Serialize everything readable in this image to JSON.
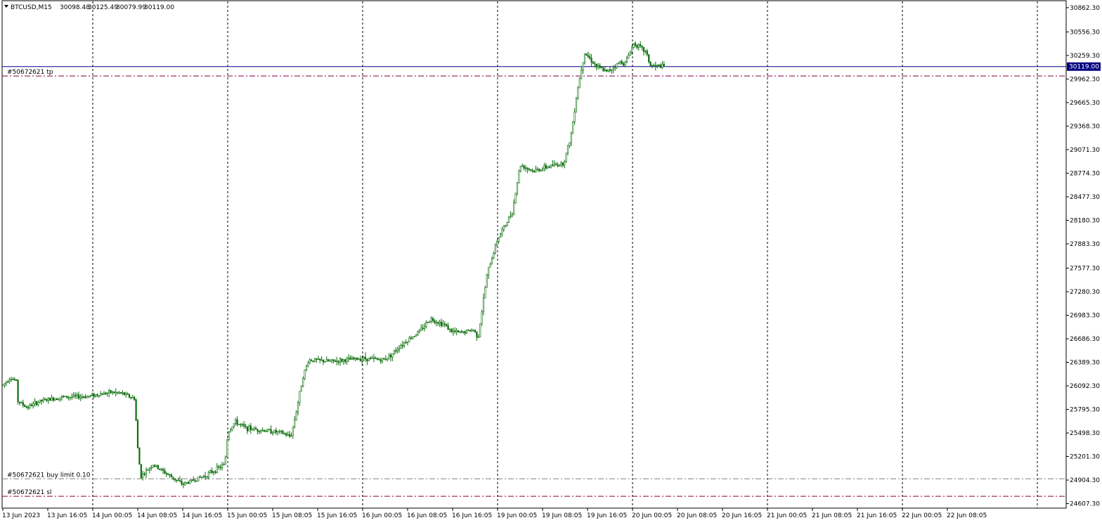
{
  "header": {
    "symbol": "BTCUSD,M15",
    "open": "30098.48",
    "high": "30125.49",
    "low": "30079.99",
    "close": "30119.00"
  },
  "chart_data": {
    "type": "candlestick",
    "symbol": "BTCUSD",
    "timeframe": "M15",
    "ylim": [
      24550,
      30950
    ],
    "y_ticks": [
      "30862.30",
      "30556.30",
      "30259.30",
      "29962.30",
      "29665.30",
      "29368.30",
      "29071.30",
      "28774.30",
      "28477.30",
      "28180.30",
      "27883.30",
      "27577.30",
      "27280.30",
      "26983.30",
      "26686.30",
      "26389.30",
      "26092.30",
      "25795.30",
      "25498.30",
      "25201.30",
      "24904.30",
      "24607.30"
    ],
    "x_ticks": [
      "13 Jun 2023",
      "13 Jun 16:05",
      "14 Jun 00:05",
      "14 Jun 08:05",
      "14 Jun 16:05",
      "15 Jun 00:05",
      "15 Jun 08:05",
      "15 Jun 16:05",
      "16 Jun 00:05",
      "16 Jun 08:05",
      "16 Jun 16:05",
      "19 Jun 00:05",
      "19 Jun 08:05",
      "19 Jun 16:05",
      "20 Jun 00:05",
      "20 Jun 08:05",
      "20 Jun 16:05",
      "21 Jun 00:05",
      "21 Jun 08:05",
      "21 Jun 16:05",
      "22 Jun 00:05",
      "22 Jun 08:05"
    ],
    "grid": "vertical-dashed",
    "current_price": {
      "value": 30119.0,
      "label": "30119.00",
      "color": "#00008b"
    },
    "levels": [
      {
        "name": "take-profit",
        "label": "#50672621 tp",
        "value": 30000,
        "color": "#800040",
        "style": "dashdot"
      },
      {
        "name": "buy-limit",
        "label": "#50672621 buy limit 0.10",
        "value": 24920,
        "color": "#808080",
        "style": "dashdot"
      },
      {
        "name": "stop-loss",
        "label": "#50672621 sl",
        "value": 24700,
        "color": "#800040",
        "style": "dashdot"
      }
    ],
    "series": [
      {
        "color": "#0a6e0a",
        "anchors": [
          [
            13.0,
            26100
          ],
          [
            13.5,
            26200
          ],
          [
            13.9,
            26150
          ],
          [
            14.0,
            25900
          ],
          [
            14.6,
            25820
          ],
          [
            15.5,
            25900
          ],
          [
            16.9,
            25950
          ],
          [
            18.6,
            25960
          ],
          [
            20.2,
            26010
          ],
          [
            20.9,
            26000
          ],
          [
            21.8,
            25930
          ],
          [
            22.0,
            25300
          ],
          [
            22.2,
            24950
          ],
          [
            23.0,
            25100
          ],
          [
            25.0,
            24850
          ],
          [
            26.5,
            24960
          ],
          [
            27.8,
            25100
          ],
          [
            28.0,
            25500
          ],
          [
            28.5,
            25640
          ],
          [
            29.2,
            25560
          ],
          [
            30.5,
            25530
          ],
          [
            31.6,
            25500
          ],
          [
            32.2,
            25450
          ],
          [
            32.5,
            25700
          ],
          [
            33.0,
            26200
          ],
          [
            33.4,
            26420
          ],
          [
            34.9,
            26400
          ],
          [
            37.0,
            26440
          ],
          [
            38.4,
            26420
          ],
          [
            39.0,
            26500
          ],
          [
            39.5,
            26600
          ],
          [
            40.8,
            26780
          ],
          [
            41.5,
            26940
          ],
          [
            42.5,
            26860
          ],
          [
            42.9,
            26780
          ],
          [
            43.5,
            26760
          ],
          [
            44.4,
            26800
          ],
          [
            44.7,
            26700
          ],
          [
            45.3,
            27500
          ],
          [
            46.0,
            27950
          ],
          [
            46.6,
            28150
          ],
          [
            47.0,
            28300
          ],
          [
            47.5,
            28880
          ],
          [
            48.4,
            28800
          ],
          [
            49.4,
            28860
          ],
          [
            50.4,
            28900
          ],
          [
            50.9,
            29250
          ],
          [
            51.3,
            29800
          ],
          [
            51.8,
            30300
          ],
          [
            52.6,
            30120
          ],
          [
            53.3,
            30050
          ],
          [
            54.2,
            30180
          ],
          [
            54.5,
            30160
          ],
          [
            55.1,
            30420
          ],
          [
            55.9,
            30300
          ],
          [
            56.2,
            30130
          ],
          [
            57.2,
            30120
          ]
        ]
      }
    ]
  }
}
